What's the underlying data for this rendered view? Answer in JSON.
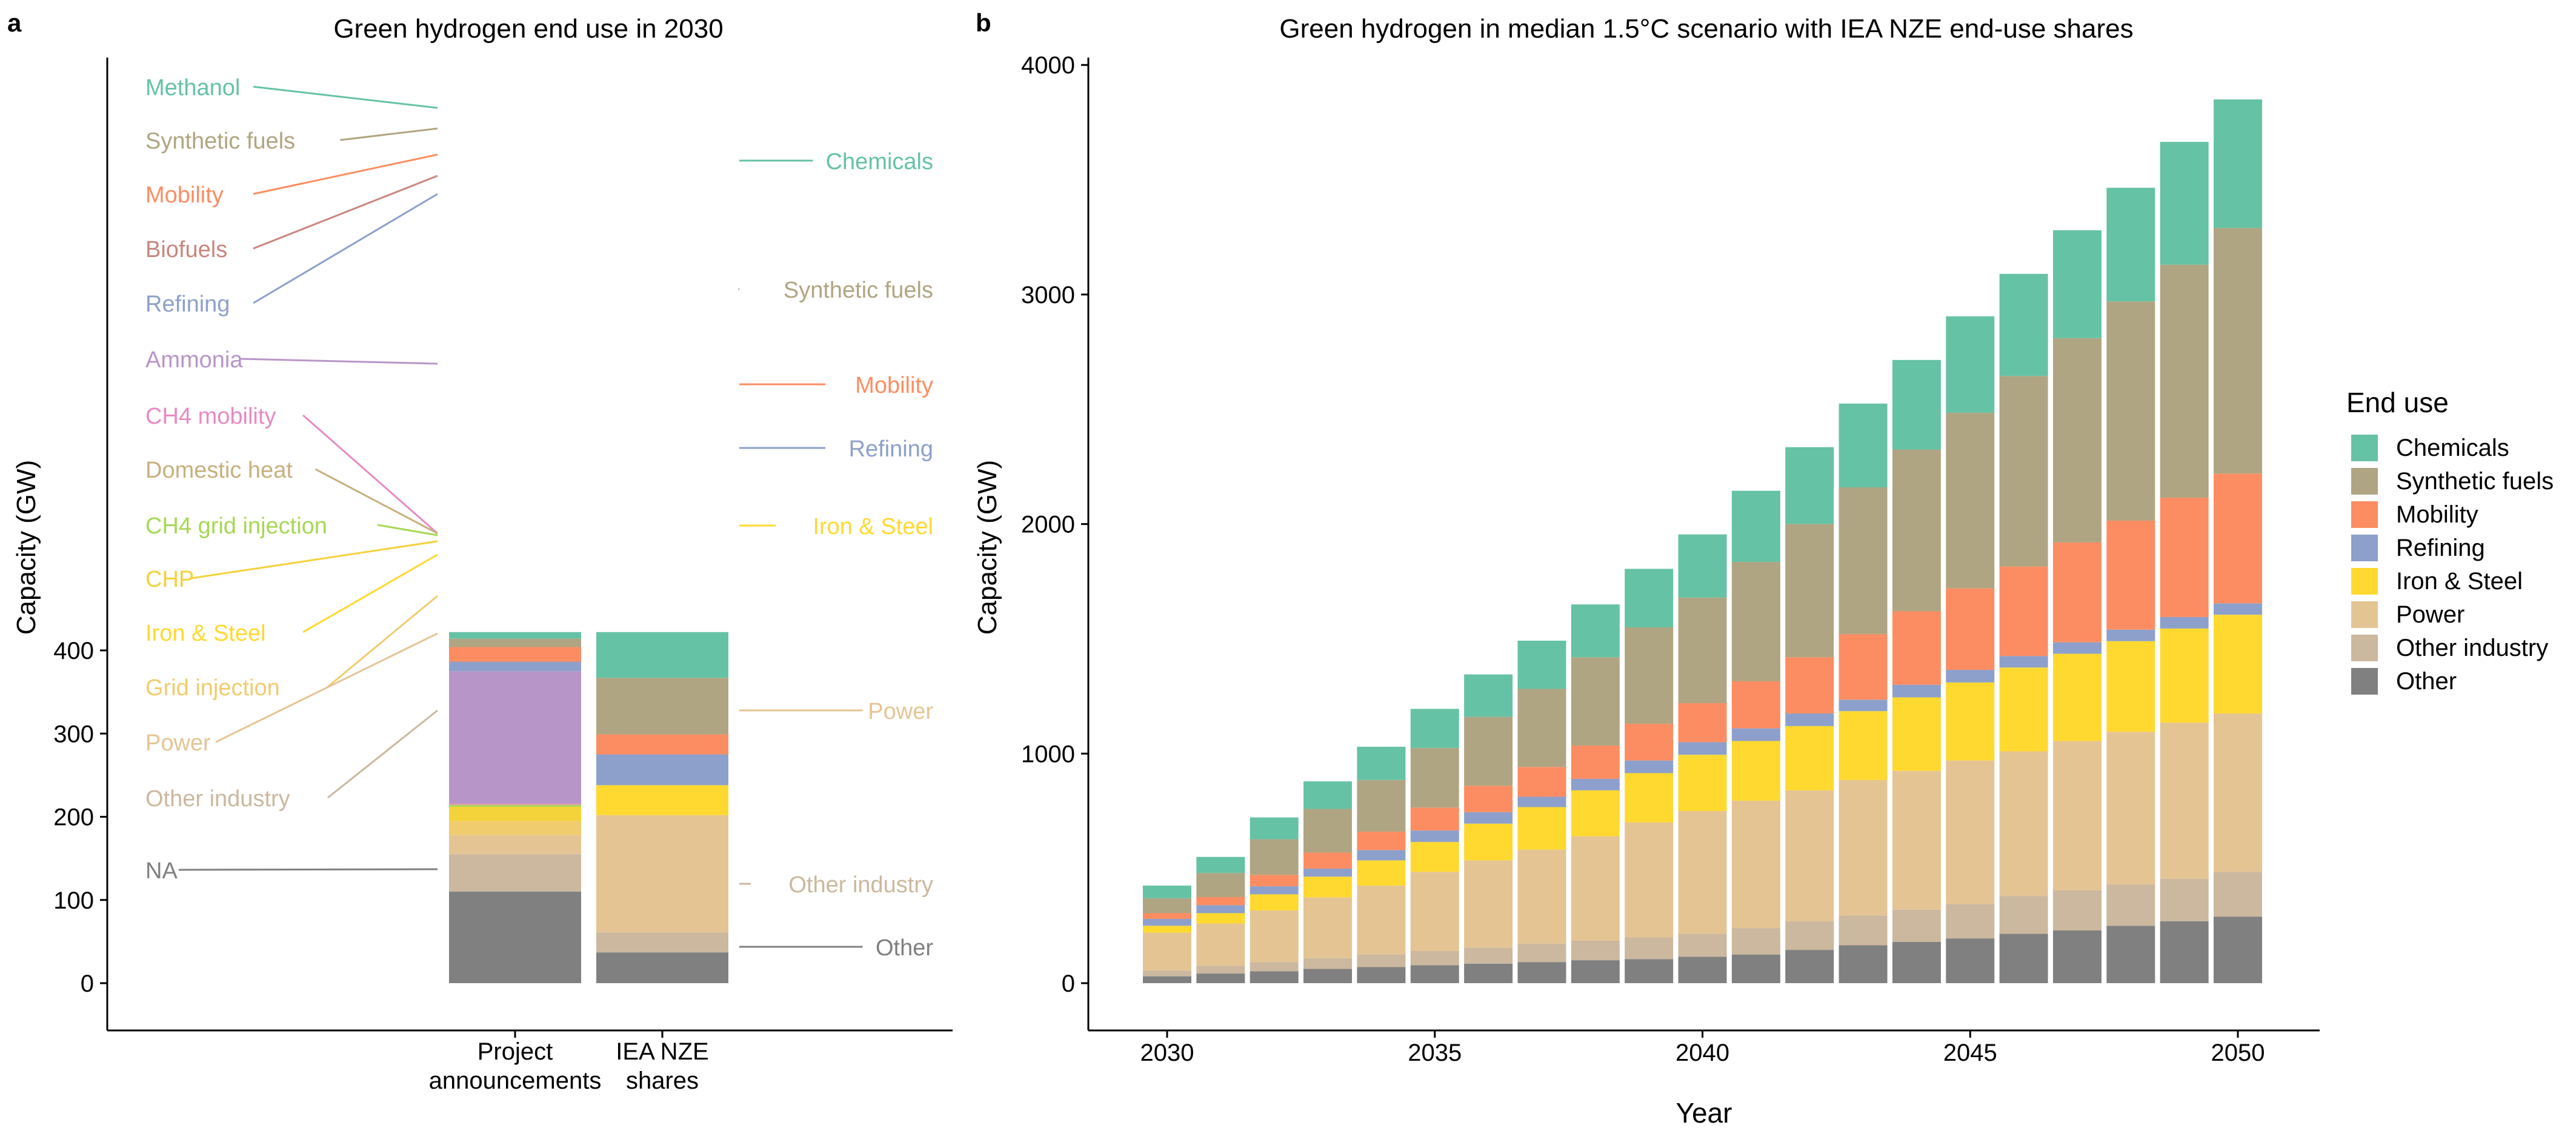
{
  "panel_a": {
    "letter": "a",
    "title": "Green hydrogen end use in 2030",
    "ylabel": "Capacity (GW)",
    "yticks": [
      0,
      100,
      200,
      300,
      400
    ],
    "categories": [
      "Project\nannouncements",
      "IEA NZE\nshares"
    ]
  },
  "panel_b": {
    "letter": "b",
    "title": "Green hydrogen in median 1.5°C scenario with IEA NZE end-use shares",
    "xlabel": "Year",
    "ylabel": "Capacity (GW)",
    "xticks": [
      2030,
      2035,
      2040,
      2045,
      2050
    ],
    "yticks": [
      0,
      1000,
      2000,
      3000,
      4000
    ]
  },
  "legend": {
    "title": "End use",
    "items": [
      {
        "label": "Chemicals",
        "color": "#66C2A5"
      },
      {
        "label": "Synthetic fuels",
        "color": "#B0A582"
      },
      {
        "label": "Mobility",
        "color": "#FC8D62"
      },
      {
        "label": "Refining",
        "color": "#8DA0CB"
      },
      {
        "label": "Iron & Steel",
        "color": "#FFD92F"
      },
      {
        "label": "Power",
        "color": "#E5C494"
      },
      {
        "label": "Other industry",
        "color": "#CBB89E"
      },
      {
        "label": "Other",
        "color": "#808080"
      }
    ]
  },
  "chart_data": [
    {
      "type": "bar",
      "stacked": true,
      "title": "Green hydrogen end use in 2030",
      "ylabel": "Capacity (GW)",
      "ylim": [
        0,
        440
      ],
      "categories": [
        "Project announcements",
        "IEA NZE shares"
      ],
      "bars": [
        {
          "category": "Project announcements",
          "segments": [
            {
              "name": "NA",
              "value": 110,
              "color": "#808080"
            },
            {
              "name": "Other industry",
              "value": 45,
              "color": "#CBB89E"
            },
            {
              "name": "Power",
              "value": 23,
              "color": "#E5C494"
            },
            {
              "name": "Grid injection",
              "value": 17,
              "color": "#F0CC6E"
            },
            {
              "name": "Iron & Steel",
              "value": 0,
              "color": "#FFD92F"
            },
            {
              "name": "CHP",
              "value": 17,
              "color": "#F4D23A"
            },
            {
              "name": "CH4 grid injection",
              "value": 2,
              "color": "#A6D854"
            },
            {
              "name": "Domestic heat",
              "value": 1,
              "color": "#C8B07E"
            },
            {
              "name": "CH4 mobility",
              "value": 1,
              "color": "#E78AC3"
            },
            {
              "name": "Ammonia",
              "value": 159,
              "color": "#B895C8"
            },
            {
              "name": "Refining",
              "value": 11,
              "color": "#8DA0CB"
            },
            {
              "name": "Biofuels",
              "value": 1,
              "color": "#C9857E"
            },
            {
              "name": "Mobility",
              "value": 17,
              "color": "#FC8D62"
            },
            {
              "name": "Synthetic fuels",
              "value": 10,
              "color": "#B0A582"
            },
            {
              "name": "Methanol",
              "value": 8,
              "color": "#66C2A5"
            }
          ]
        },
        {
          "category": "IEA NZE shares",
          "segments": [
            {
              "name": "Other",
              "value": 37,
              "color": "#808080"
            },
            {
              "name": "Other industry",
              "value": 24,
              "color": "#CBB89E"
            },
            {
              "name": "Power",
              "value": 141,
              "color": "#E5C494"
            },
            {
              "name": "Iron & Steel",
              "value": 36,
              "color": "#FFD92F"
            },
            {
              "name": "Refining",
              "value": 37,
              "color": "#8DA0CB"
            },
            {
              "name": "Mobility",
              "value": 24,
              "color": "#FC8D62"
            },
            {
              "name": "Synthetic fuels",
              "value": 68,
              "color": "#B0A582"
            },
            {
              "name": "Chemicals",
              "value": 55,
              "color": "#66C2A5"
            }
          ]
        }
      ],
      "annotations_left": [
        "Methanol",
        "Synthetic fuels",
        "Mobility",
        "Biofuels",
        "Refining",
        "Ammonia",
        "CH4 mobility",
        "Domestic heat",
        "CH4 grid injection",
        "CHP",
        "Iron & Steel",
        "Grid injection",
        "Power",
        "Other industry",
        "NA"
      ],
      "annotations_right": [
        "Chemicals",
        "Synthetic fuels",
        "Mobility",
        "Refining",
        "Iron & Steel",
        "Power",
        "Other industry",
        "Other"
      ]
    },
    {
      "type": "bar",
      "stacked": true,
      "title": "Green hydrogen in median 1.5°C scenario with IEA NZE end-use shares",
      "xlabel": "Year",
      "ylabel": "Capacity (GW)",
      "ylim": [
        0,
        4000
      ],
      "legend_position": "right",
      "x": [
        2030,
        2031,
        2032,
        2033,
        2034,
        2035,
        2036,
        2037,
        2038,
        2039,
        2040,
        2041,
        2042,
        2043,
        2044,
        2045,
        2046,
        2047,
        2048,
        2049,
        2050
      ],
      "series": [
        {
          "name": "Other",
          "color": "#808080",
          "values": [
            30,
            42,
            52,
            62,
            70,
            78,
            85,
            92,
            100,
            105,
            115,
            125,
            145,
            165,
            180,
            195,
            215,
            230,
            250,
            270,
            290
          ]
        },
        {
          "name": "Other industry",
          "color": "#CBB89E",
          "values": [
            25,
            33,
            40,
            47,
            55,
            62,
            70,
            80,
            85,
            95,
            100,
            115,
            125,
            130,
            140,
            150,
            165,
            175,
            180,
            185,
            195
          ]
        },
        {
          "name": "Power",
          "color": "#E5C494",
          "values": [
            165,
            185,
            225,
            265,
            300,
            345,
            380,
            410,
            455,
            500,
            535,
            555,
            570,
            590,
            605,
            625,
            630,
            650,
            665,
            680,
            690
          ]
        },
        {
          "name": "Iron & Steel",
          "color": "#FFD92F",
          "values": [
            30,
            45,
            70,
            90,
            110,
            130,
            160,
            185,
            200,
            215,
            245,
            260,
            280,
            300,
            320,
            340,
            365,
            380,
            395,
            410,
            430
          ]
        },
        {
          "name": "Refining",
          "color": "#8DA0CB",
          "values": [
            30,
            35,
            35,
            35,
            45,
            50,
            50,
            45,
            50,
            55,
            55,
            55,
            55,
            50,
            55,
            55,
            50,
            50,
            50,
            50,
            50
          ]
        },
        {
          "name": "Mobility",
          "color": "#FC8D62",
          "values": [
            25,
            35,
            50,
            70,
            80,
            100,
            115,
            130,
            145,
            160,
            170,
            205,
            245,
            285,
            320,
            355,
            390,
            435,
            475,
            520,
            565
          ]
        },
        {
          "name": "Synthetic fuels",
          "color": "#B0A582",
          "values": [
            65,
            105,
            155,
            190,
            225,
            260,
            300,
            340,
            385,
            420,
            460,
            520,
            580,
            640,
            705,
            765,
            830,
            890,
            955,
            1015,
            1070
          ]
        },
        {
          "name": "Chemicals",
          "color": "#66C2A5",
          "values": [
            55,
            70,
            95,
            120,
            145,
            170,
            185,
            210,
            230,
            255,
            275,
            310,
            335,
            365,
            390,
            420,
            445,
            470,
            495,
            535,
            560
          ]
        }
      ]
    }
  ]
}
